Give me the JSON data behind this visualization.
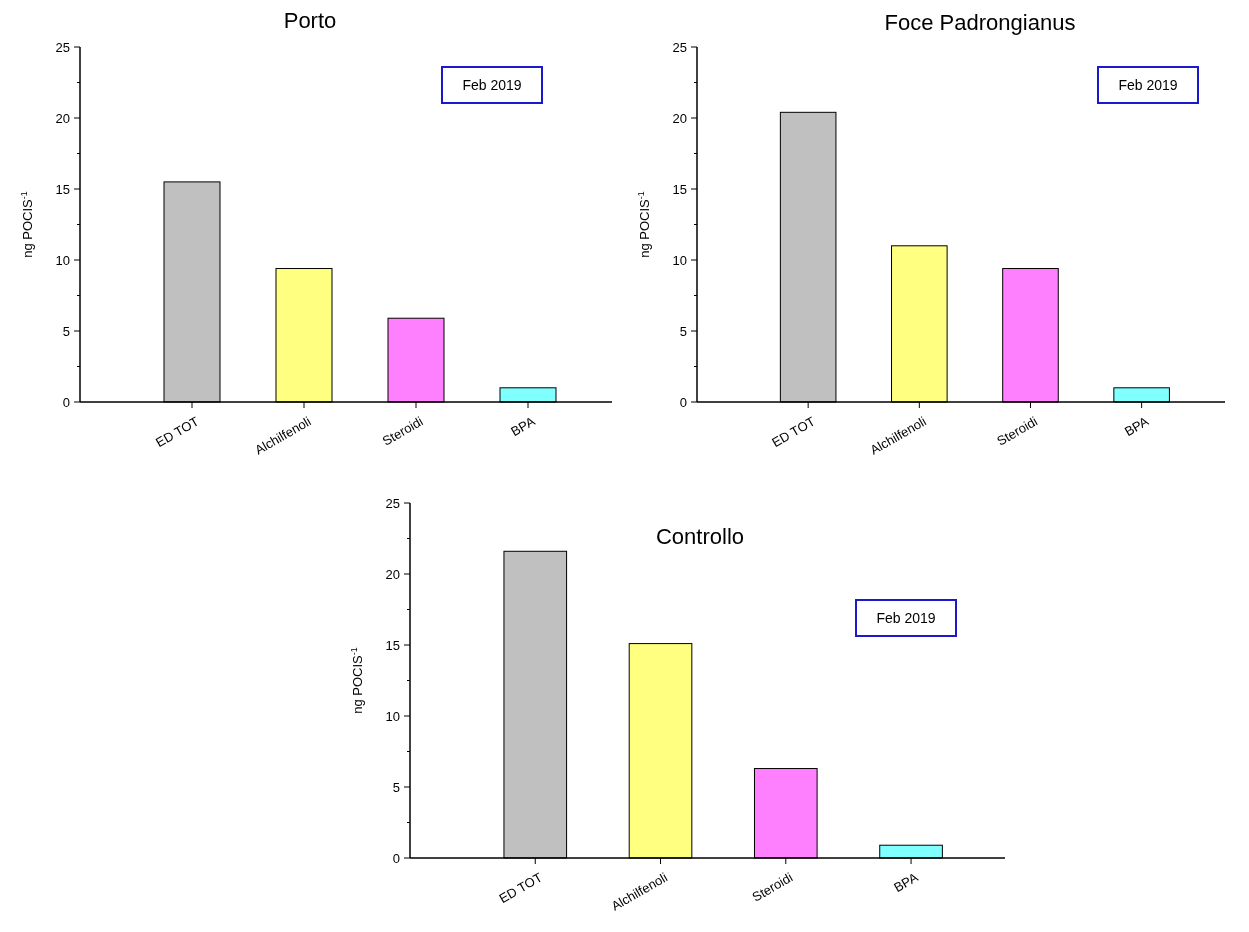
{
  "chart_data": [
    {
      "type": "bar",
      "title": "Porto",
      "ylabel": "ng POCIS$^{-1}$",
      "categories": [
        "ED TOT",
        "Alchilfenoli",
        "Steroidi",
        "BPA"
      ],
      "values": [
        15.5,
        9.4,
        5.9,
        1.0
      ],
      "colors": [
        "#c0c0c0",
        "#ffff80",
        "#ff80ff",
        "#80ffff"
      ],
      "ylim": [
        0,
        25
      ],
      "yticks": [
        0,
        5,
        10,
        15,
        20,
        25
      ],
      "annotations": [
        "Feb 2019"
      ]
    },
    {
      "type": "bar",
      "title": "Foce Padrongianus",
      "ylabel": "ng POCIS$^{-1}$",
      "categories": [
        "ED TOT",
        "Alchilfenoli",
        "Steroidi",
        "BPA"
      ],
      "values": [
        20.4,
        11.0,
        9.4,
        1.0
      ],
      "colors": [
        "#c0c0c0",
        "#ffff80",
        "#ff80ff",
        "#80ffff"
      ],
      "ylim": [
        0,
        25
      ],
      "yticks": [
        0,
        5,
        10,
        15,
        20,
        25
      ],
      "annotations": [
        "Feb 2019"
      ]
    },
    {
      "type": "bar",
      "title": "Controllo",
      "ylabel": "ng POCIS$^{-1}$",
      "categories": [
        "ED TOT",
        "Alchilfenoli",
        "Steroidi",
        "BPA"
      ],
      "values": [
        21.6,
        15.1,
        6.3,
        0.9
      ],
      "colors": [
        "#c0c0c0",
        "#ffff80",
        "#ff80ff",
        "#80ffff"
      ],
      "ylim": [
        0,
        25
      ],
      "yticks": [
        0,
        5,
        10,
        15,
        20,
        25
      ],
      "annotations": [
        "Feb 2019"
      ]
    }
  ]
}
